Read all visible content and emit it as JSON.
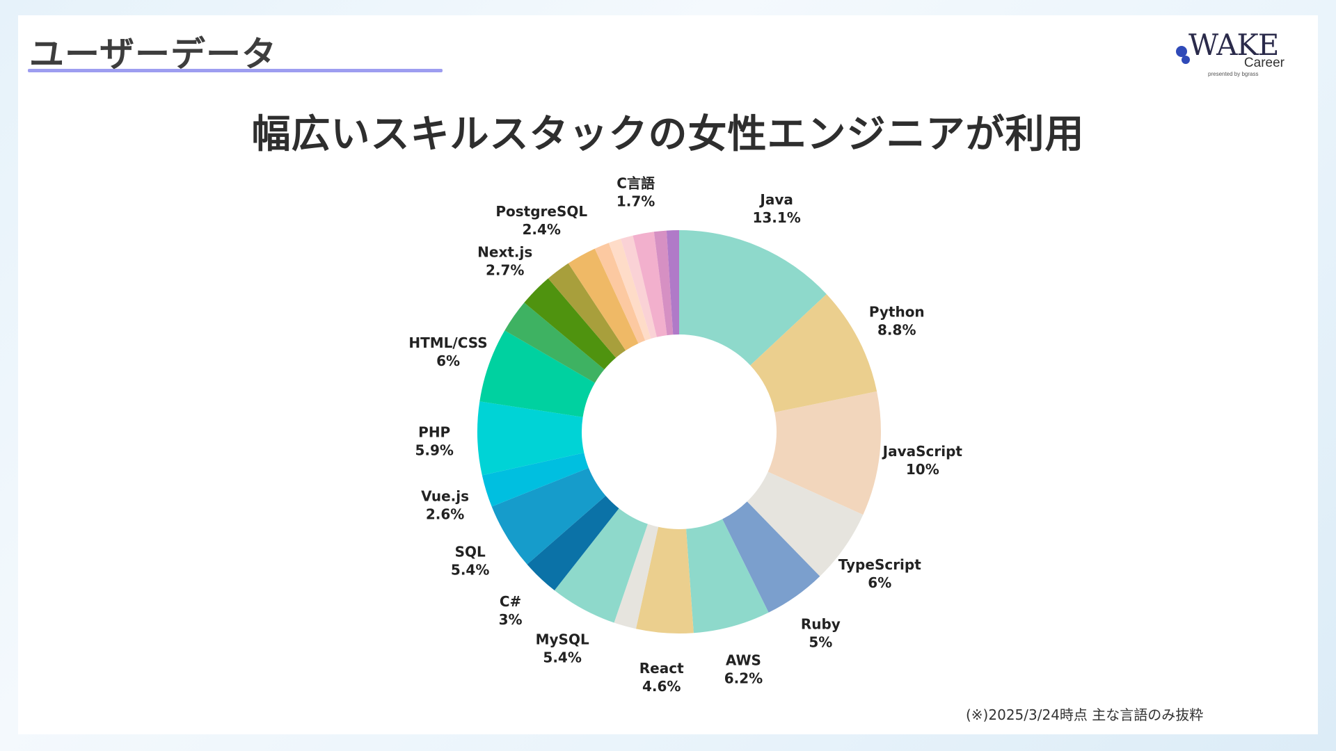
{
  "header": {
    "section_title": "ユーザーデータ",
    "accent_color": "#9d9df0"
  },
  "logo": {
    "word": "WAKE",
    "sub": "Career",
    "presented": "presented by bgrass",
    "brand_color": "#2f4ab8"
  },
  "main_title": "幅広いスキルスタックの女性エンジニアが利用",
  "footnote": "(※)2025/3/24時点 主な言語のみ抜粋",
  "chart_data": {
    "type": "pie",
    "variant": "donut",
    "value_suffix": "%",
    "slices": [
      {
        "label": "Java",
        "value": 13.1,
        "display": "13.1",
        "color": "#8ed9cb",
        "labeled": true
      },
      {
        "label": "Python",
        "value": 8.8,
        "display": "8.8",
        "color": "#ebcf8e",
        "labeled": true
      },
      {
        "label": "JavaScript",
        "value": 10,
        "display": "10",
        "color": "#f2d6bc",
        "labeled": true
      },
      {
        "label": "TypeScript",
        "value": 6,
        "display": "6",
        "color": "#e6e4de",
        "labeled": true
      },
      {
        "label": "Ruby",
        "value": 5,
        "display": "5",
        "color": "#7b9fcd",
        "labeled": true
      },
      {
        "label": "AWS",
        "value": 6.2,
        "display": "6.2",
        "color": "#8ed9cb",
        "labeled": true
      },
      {
        "label": "React",
        "value": 4.6,
        "display": "4.6",
        "color": "#ebcf8e",
        "labeled": true
      },
      {
        "label": "",
        "value": 1.8,
        "display": "",
        "color": "#e6e4de",
        "labeled": false
      },
      {
        "label": "MySQL",
        "value": 5.4,
        "display": "5.4",
        "color": "#8ed9cb",
        "labeled": true
      },
      {
        "label": "C#",
        "value": 3,
        "display": "3",
        "color": "#0b72a7",
        "labeled": true
      },
      {
        "label": "SQL",
        "value": 5.4,
        "display": "5.4",
        "color": "#169ccb",
        "labeled": true
      },
      {
        "label": "Vue.js",
        "value": 2.6,
        "display": "2.6",
        "color": "#00bfe0",
        "labeled": true
      },
      {
        "label": "PHP",
        "value": 5.9,
        "display": "5.9",
        "color": "#00d3d6",
        "labeled": true
      },
      {
        "label": "HTML/CSS",
        "value": 6,
        "display": "6",
        "color": "#00d1a0",
        "labeled": true
      },
      {
        "label": "",
        "value": 2.7,
        "display": "",
        "color": "#3eb262",
        "labeled": false
      },
      {
        "label": "Next.js",
        "value": 2.7,
        "display": "2.7",
        "color": "#4f930f",
        "labeled": true
      },
      {
        "label": "",
        "value": 2.0,
        "display": "",
        "color": "#a89f3c",
        "labeled": false
      },
      {
        "label": "PostgreSQL",
        "value": 2.4,
        "display": "2.4",
        "color": "#efb966",
        "labeled": true
      },
      {
        "label": "",
        "value": 1.2,
        "display": "",
        "color": "#fcc9a1",
        "labeled": false
      },
      {
        "label": "",
        "value": 1.0,
        "display": "",
        "color": "#fedcc8",
        "labeled": false
      },
      {
        "label": "",
        "value": 1.0,
        "display": "",
        "color": "#fad2d6",
        "labeled": false
      },
      {
        "label": "C言語",
        "value": 1.7,
        "display": "1.7",
        "color": "#f2b0cd",
        "labeled": true
      },
      {
        "label": "",
        "value": 1.0,
        "display": "",
        "color": "#d690c3",
        "labeled": false
      },
      {
        "label": "",
        "value": 1.0,
        "display": "",
        "color": "#b07ac8",
        "labeled": false
      }
    ],
    "legend": "none",
    "data_labels": "outside"
  }
}
